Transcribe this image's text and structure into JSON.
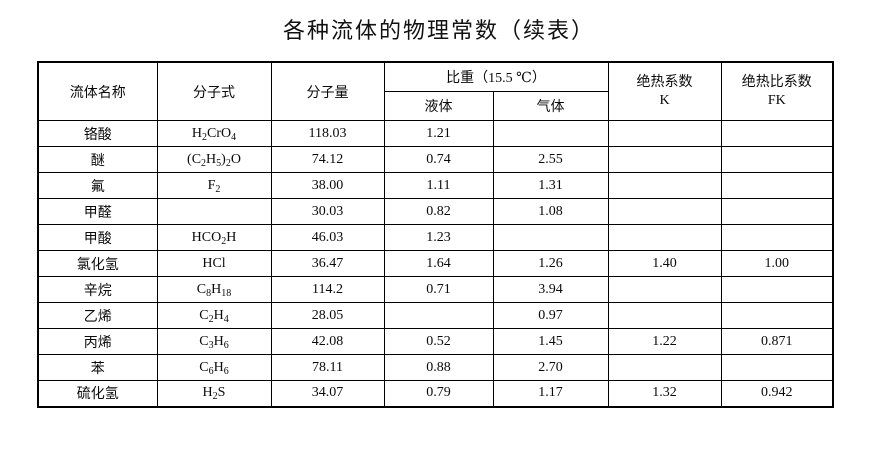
{
  "page": {
    "title": "各种流体的物理常数（续表）"
  },
  "table": {
    "headers": {
      "fluid_name": "流体名称",
      "formula": "分子式",
      "molecular_weight": "分子量",
      "specific_gravity": "比重（15.5 ℃）",
      "liquid": "液体",
      "gas": "气体",
      "adiabatic_line1": "绝热系数",
      "adiabatic_line2": "K",
      "adiabatic_ratio_line1": "绝热比系数",
      "adiabatic_ratio_line2": "FK"
    },
    "rows": [
      {
        "name": "铬酸",
        "formula": "H2CrO4",
        "mw": "118.03",
        "liquid": "1.21",
        "gas": "",
        "k": "",
        "fk": ""
      },
      {
        "name": "醚",
        "formula": "(C2H5)2O",
        "mw": "74.12",
        "liquid": "0.74",
        "gas": "2.55",
        "k": "",
        "fk": ""
      },
      {
        "name": "氟",
        "formula": "F2",
        "mw": "38.00",
        "liquid": "1.11",
        "gas": "1.31",
        "k": "",
        "fk": ""
      },
      {
        "name": "甲醛",
        "formula": "",
        "mw": "30.03",
        "liquid": "0.82",
        "gas": "1.08",
        "k": "",
        "fk": ""
      },
      {
        "name": "甲酸",
        "formula": "HCO2H",
        "mw": "46.03",
        "liquid": "1.23",
        "gas": "",
        "k": "",
        "fk": ""
      },
      {
        "name": "氯化氢",
        "formula": "HCl",
        "mw": "36.47",
        "liquid": "1.64",
        "gas": "1.26",
        "k": "1.40",
        "fk": "1.00"
      },
      {
        "name": "辛烷",
        "formula": "C8H18",
        "mw": "114.2",
        "liquid": "0.71",
        "gas": "3.94",
        "k": "",
        "fk": ""
      },
      {
        "name": "乙烯",
        "formula": "C2H4",
        "mw": "28.05",
        "liquid": "",
        "gas": "0.97",
        "k": "",
        "fk": ""
      },
      {
        "name": "丙烯",
        "formula": "C3H6",
        "mw": "42.08",
        "liquid": "0.52",
        "gas": "1.45",
        "k": "1.22",
        "fk": "0.871"
      },
      {
        "name": "苯",
        "formula": "C6H6",
        "mw": "78.11",
        "liquid": "0.88",
        "gas": "2.70",
        "k": "",
        "fk": ""
      },
      {
        "name": "硫化氢",
        "formula": "H2S",
        "mw": "34.07",
        "liquid": "0.79",
        "gas": "1.17",
        "k": "1.32",
        "fk": "0.942"
      }
    ]
  }
}
